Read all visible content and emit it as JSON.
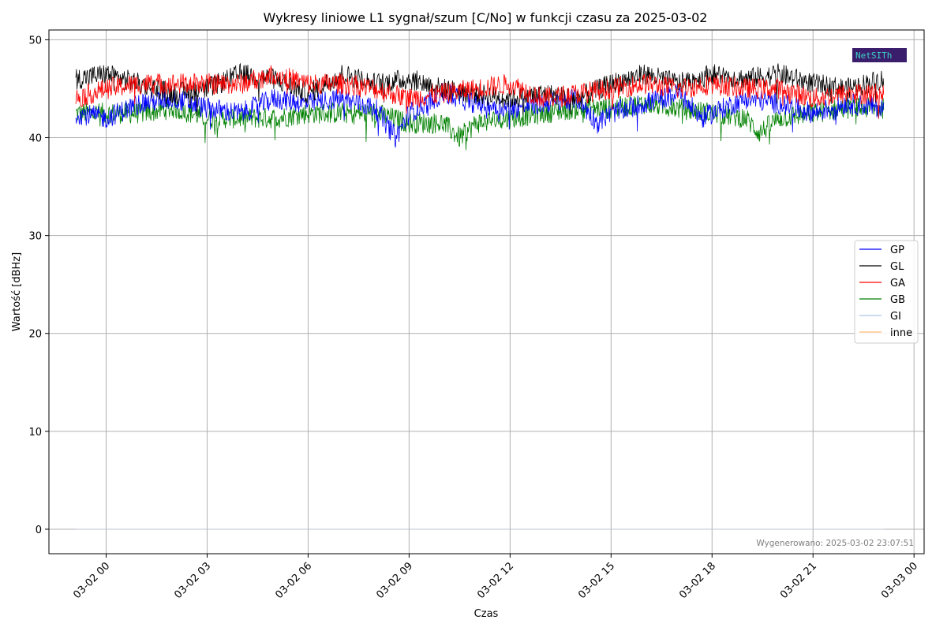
{
  "chart_data": {
    "type": "line",
    "title": "Wykresy liniowe L1 sygnał/szum [C/No] w funkcji czasu za 2025-03-02",
    "xlabel": "Czas",
    "ylabel": "Wartość [dBHz]",
    "x_unit": "hours",
    "x_range": [
      -1.7,
      24.3
    ],
    "x_ticks": [
      {
        "value": 0,
        "label": "03-02 00"
      },
      {
        "value": 3,
        "label": "03-02 03"
      },
      {
        "value": 6,
        "label": "03-02 06"
      },
      {
        "value": 9,
        "label": "03-02 09"
      },
      {
        "value": 12,
        "label": "03-02 12"
      },
      {
        "value": 15,
        "label": "03-02 15"
      },
      {
        "value": 18,
        "label": "03-02 18"
      },
      {
        "value": 21,
        "label": "03-02 21"
      },
      {
        "value": 24,
        "label": "03-03 00"
      }
    ],
    "ylim": [
      -2.5,
      51
    ],
    "y_ticks": [
      0,
      10,
      20,
      30,
      40,
      50
    ],
    "grid": true,
    "legend_position": "right",
    "series": [
      {
        "name": "GP",
        "color": "#0000ff",
        "x": [
          -0.9,
          0.0,
          1.0,
          2.0,
          3.0,
          4.0,
          5.0,
          6.0,
          7.0,
          8.0,
          8.6,
          9.0,
          10.0,
          11.0,
          12.0,
          13.0,
          14.0,
          14.6,
          15.0,
          16.0,
          17.0,
          17.7,
          18.0,
          19.0,
          20.0,
          21.0,
          22.0,
          23.1
        ],
        "y": [
          42.5,
          42.0,
          43.5,
          44.0,
          43.0,
          42.5,
          44.0,
          43.5,
          44.0,
          43.0,
          40.0,
          42.5,
          44.5,
          43.5,
          43.0,
          43.5,
          44.0,
          41.5,
          42.5,
          43.5,
          44.5,
          42.0,
          42.5,
          44.0,
          43.5,
          42.5,
          43.5,
          43.0
        ]
      },
      {
        "name": "GL",
        "color": "#000000",
        "x": [
          -0.9,
          0.0,
          1.0,
          2.0,
          3.0,
          4.0,
          5.0,
          6.0,
          7.0,
          8.0,
          9.0,
          10.0,
          11.0,
          12.0,
          13.0,
          14.0,
          15.0,
          16.0,
          17.0,
          18.0,
          19.0,
          20.0,
          21.0,
          22.0,
          23.1
        ],
        "y": [
          46.0,
          46.5,
          45.5,
          44.5,
          45.0,
          46.5,
          46.0,
          44.5,
          46.5,
          45.5,
          46.0,
          45.0,
          44.5,
          44.0,
          44.5,
          44.0,
          45.5,
          46.5,
          45.5,
          46.5,
          46.0,
          46.5,
          45.5,
          45.0,
          46.0
        ]
      },
      {
        "name": "GA",
        "color": "#ff0000",
        "x": [
          -0.9,
          0.0,
          1.0,
          2.0,
          3.0,
          4.0,
          5.0,
          6.0,
          7.0,
          8.0,
          9.0,
          10.0,
          11.0,
          12.0,
          13.0,
          14.0,
          15.0,
          16.0,
          17.0,
          18.0,
          19.0,
          20.0,
          21.0,
          22.0,
          23.1
        ],
        "y": [
          44.0,
          45.0,
          45.5,
          45.5,
          45.5,
          45.5,
          46.5,
          45.5,
          45.5,
          45.0,
          44.0,
          44.5,
          45.0,
          45.5,
          44.0,
          44.5,
          45.0,
          45.5,
          45.0,
          45.5,
          45.0,
          45.0,
          44.0,
          44.5,
          44.5
        ]
      },
      {
        "name": "GB",
        "color": "#008000",
        "x": [
          -0.9,
          0.0,
          1.0,
          2.0,
          3.0,
          4.0,
          5.0,
          6.0,
          7.0,
          8.0,
          9.0,
          10.0,
          10.5,
          11.0,
          12.0,
          13.0,
          14.0,
          15.0,
          16.0,
          17.0,
          18.0,
          19.0,
          19.4,
          20.0,
          21.0,
          22.0,
          23.1
        ],
        "y": [
          42.5,
          42.5,
          42.5,
          43.0,
          42.0,
          42.0,
          42.0,
          42.5,
          42.5,
          42.5,
          41.5,
          41.5,
          40.0,
          41.5,
          42.0,
          42.5,
          43.0,
          43.0,
          43.5,
          43.0,
          42.5,
          42.0,
          40.5,
          42.0,
          42.5,
          43.0,
          43.0
        ]
      },
      {
        "name": "GI",
        "color": "#aec7e8",
        "x": [
          -0.9,
          23.1
        ],
        "y": [
          0,
          0
        ]
      },
      {
        "name": "inne",
        "color": "#ffbb78",
        "x": [
          -0.9,
          23.1
        ],
        "y": [
          0,
          0
        ]
      }
    ]
  },
  "logo": {
    "text": "NetSITh"
  },
  "footer": {
    "generated": "Wygenerowano: 2025-03-02 23:07:51"
  }
}
